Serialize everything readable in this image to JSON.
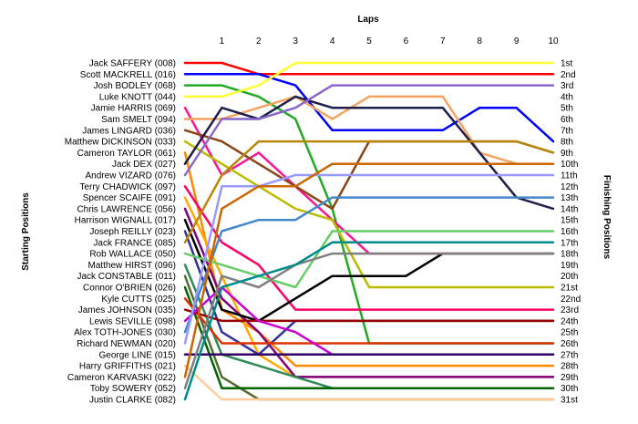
{
  "chart_data": {
    "type": "line",
    "xlabel": "Laps",
    "ylabel_left": "Starting Positions",
    "ylabel_right": "Finishing Positions",
    "laps": [
      1,
      2,
      3,
      4,
      5,
      6,
      7,
      8,
      9,
      10
    ],
    "starting_order": [
      "Jack SAFFERY (008)",
      "Scott MACKRELL (016)",
      "Josh BODLEY (068)",
      "Luke KNOTT (044)",
      "Jamie HARRIS (069)",
      "Sam SMELT (094)",
      "James LINGARD (036)",
      "Matthew DICKINSON (033)",
      "Cameron TAYLOR (061)",
      "Jack DEX (027)",
      "Andrew VIZARD (076)",
      "Terry CHADWICK (097)",
      "Spencer SCAIFE (091)",
      "Chris LAWRENCE (056)",
      "Harrison WIGNALL (017)",
      "Joseph REILLY (023)",
      "Jack FRANCE (085)",
      "Rob WALLACE (050)",
      "Matthew HIRST (096)",
      "Jack CONSTABLE (011)",
      "Connor O'BRIEN (026)",
      "Kyle CUTTS (025)",
      "James JOHNSON (035)",
      "Lewis SEVILLE (098)",
      "Alex TOTH-JONES (030)",
      "Richard NEWMAN (020)",
      "George LINE (015)",
      "Harry GRIFFITHS (021)",
      "Cameron KARVASKI (022)",
      "Toby SOWERY (052)",
      "Justin CLARKE (082)"
    ],
    "finishing_positions": [
      "1st",
      "2nd",
      "3rd",
      "4th",
      "5th",
      "6th",
      "7th",
      "8th",
      "9th",
      "10th",
      "11th",
      "12th",
      "13th",
      "14th",
      "15th",
      "16th",
      "17th",
      "18th",
      "19th",
      "20th",
      "21st",
      "22nd",
      "23rd",
      "24th",
      "25th",
      "26th",
      "27th",
      "28th",
      "29th",
      "30th",
      "31st"
    ],
    "ylim": [
      1,
      31
    ],
    "grid": false,
    "series": [
      {
        "color": "#ff0000",
        "positions": [
          1,
          1,
          2,
          2,
          2,
          2,
          2,
          2,
          2,
          2,
          2
        ]
      },
      {
        "color": "#0000ff",
        "positions": [
          2,
          2,
          2,
          3,
          7,
          7,
          7,
          7,
          5,
          5,
          8
        ]
      },
      {
        "color": "#22aa22",
        "positions": [
          3,
          3,
          4,
          6,
          14,
          26,
          26,
          26,
          26,
          26,
          26
        ]
      },
      {
        "color": "#ffff33",
        "positions": [
          4,
          4,
          3,
          1,
          1,
          1,
          1,
          1,
          1,
          1,
          1
        ]
      },
      {
        "color": "#ff1493",
        "positions": [
          5,
          11,
          9,
          12,
          15,
          18,
          18,
          18,
          18,
          18,
          18
        ]
      },
      {
        "color": "#f4a460",
        "positions": [
          6,
          6,
          5,
          4,
          6,
          4,
          4,
          4,
          9,
          10,
          10
        ]
      },
      {
        "color": "#8b4513",
        "positions": [
          7,
          8,
          10,
          12,
          14,
          8,
          8,
          8,
          8,
          8,
          9
        ]
      },
      {
        "color": "#bbbb00",
        "positions": [
          8,
          10,
          12,
          14,
          15,
          21,
          21,
          21,
          21,
          21,
          21
        ]
      },
      {
        "color": "#ff8800",
        "positions": [
          9,
          23,
          25,
          28,
          28,
          28,
          28,
          28,
          28,
          28,
          28
        ]
      },
      {
        "color": "#1e1e4a",
        "positions": [
          10,
          5,
          6,
          4,
          5,
          5,
          5,
          5,
          9,
          13,
          14
        ]
      },
      {
        "color": "#8866cc",
        "positions": [
          11,
          6,
          6,
          5,
          3,
          3,
          3,
          3,
          3,
          3,
          3
        ]
      },
      {
        "color": "#ff0066",
        "positions": [
          12,
          17,
          19,
          23,
          23,
          23,
          23,
          23,
          23,
          23,
          23
        ]
      },
      {
        "color": "#ffaa00",
        "positions": [
          13,
          20,
          27,
          29,
          29,
          29,
          29,
          29,
          29,
          29,
          29
        ]
      },
      {
        "color": "#800080",
        "positions": [
          14,
          22,
          25,
          29,
          29,
          29,
          29,
          29,
          29,
          29,
          29
        ]
      },
      {
        "color": "#000000",
        "positions": [
          15,
          23,
          24,
          22,
          20,
          20,
          20,
          18,
          18,
          18,
          18
        ]
      },
      {
        "color": "#333399",
        "positions": [
          16,
          25,
          27,
          24,
          24,
          24,
          24,
          24,
          24,
          24,
          24
        ]
      },
      {
        "color": "#b8860b",
        "positions": [
          17,
          11,
          8,
          8,
          8,
          8,
          8,
          8,
          8,
          8,
          9
        ]
      },
      {
        "color": "#66cc66",
        "positions": [
          18,
          19,
          20,
          21,
          16,
          16,
          16,
          16,
          16,
          16,
          16
        ]
      },
      {
        "color": "#2e8b57",
        "positions": [
          19,
          27,
          28,
          29,
          30,
          30,
          30,
          30,
          30,
          30,
          30
        ]
      },
      {
        "color": "#556b2f",
        "positions": [
          20,
          29,
          31,
          31,
          31,
          31,
          31,
          31,
          31,
          31,
          31
        ]
      },
      {
        "color": "#006400",
        "positions": [
          21,
          30,
          30,
          30,
          30,
          30,
          30,
          30,
          30,
          30,
          30
        ]
      },
      {
        "color": "#dd3300",
        "positions": [
          22,
          26,
          26,
          26,
          26,
          26,
          26,
          26,
          26,
          26,
          26
        ]
      },
      {
        "color": "#990000",
        "positions": [
          23,
          24,
          24,
          24,
          24,
          24,
          24,
          24,
          24,
          24,
          24
        ]
      },
      {
        "color": "#cc00cc",
        "positions": [
          24,
          21,
          24,
          25,
          27,
          27,
          27,
          27,
          27,
          27,
          27
        ]
      },
      {
        "color": "#4488cc",
        "positions": [
          25,
          16,
          15,
          15,
          13,
          13,
          13,
          13,
          13,
          13,
          13
        ]
      },
      {
        "color": "#9999ff",
        "positions": [
          26,
          12,
          12,
          11,
          11,
          11,
          11,
          11,
          11,
          11,
          11
        ]
      },
      {
        "color": "#330066",
        "positions": [
          27,
          27,
          27,
          27,
          27,
          27,
          27,
          27,
          27,
          27,
          27
        ]
      },
      {
        "color": "#ffcc99",
        "positions": [
          28,
          31,
          31,
          31,
          31,
          31,
          31,
          31,
          31,
          31,
          31
        ]
      },
      {
        "color": "#cc6600",
        "positions": [
          29,
          14,
          12,
          12,
          10,
          10,
          10,
          10,
          10,
          10,
          10
        ]
      },
      {
        "color": "#808080",
        "positions": [
          30,
          20,
          21,
          19,
          18,
          18,
          18,
          18,
          18,
          18,
          18
        ]
      },
      {
        "color": "#008b8b",
        "positions": [
          31,
          21,
          20,
          19,
          17,
          17,
          17,
          17,
          17,
          17,
          17
        ]
      }
    ]
  }
}
